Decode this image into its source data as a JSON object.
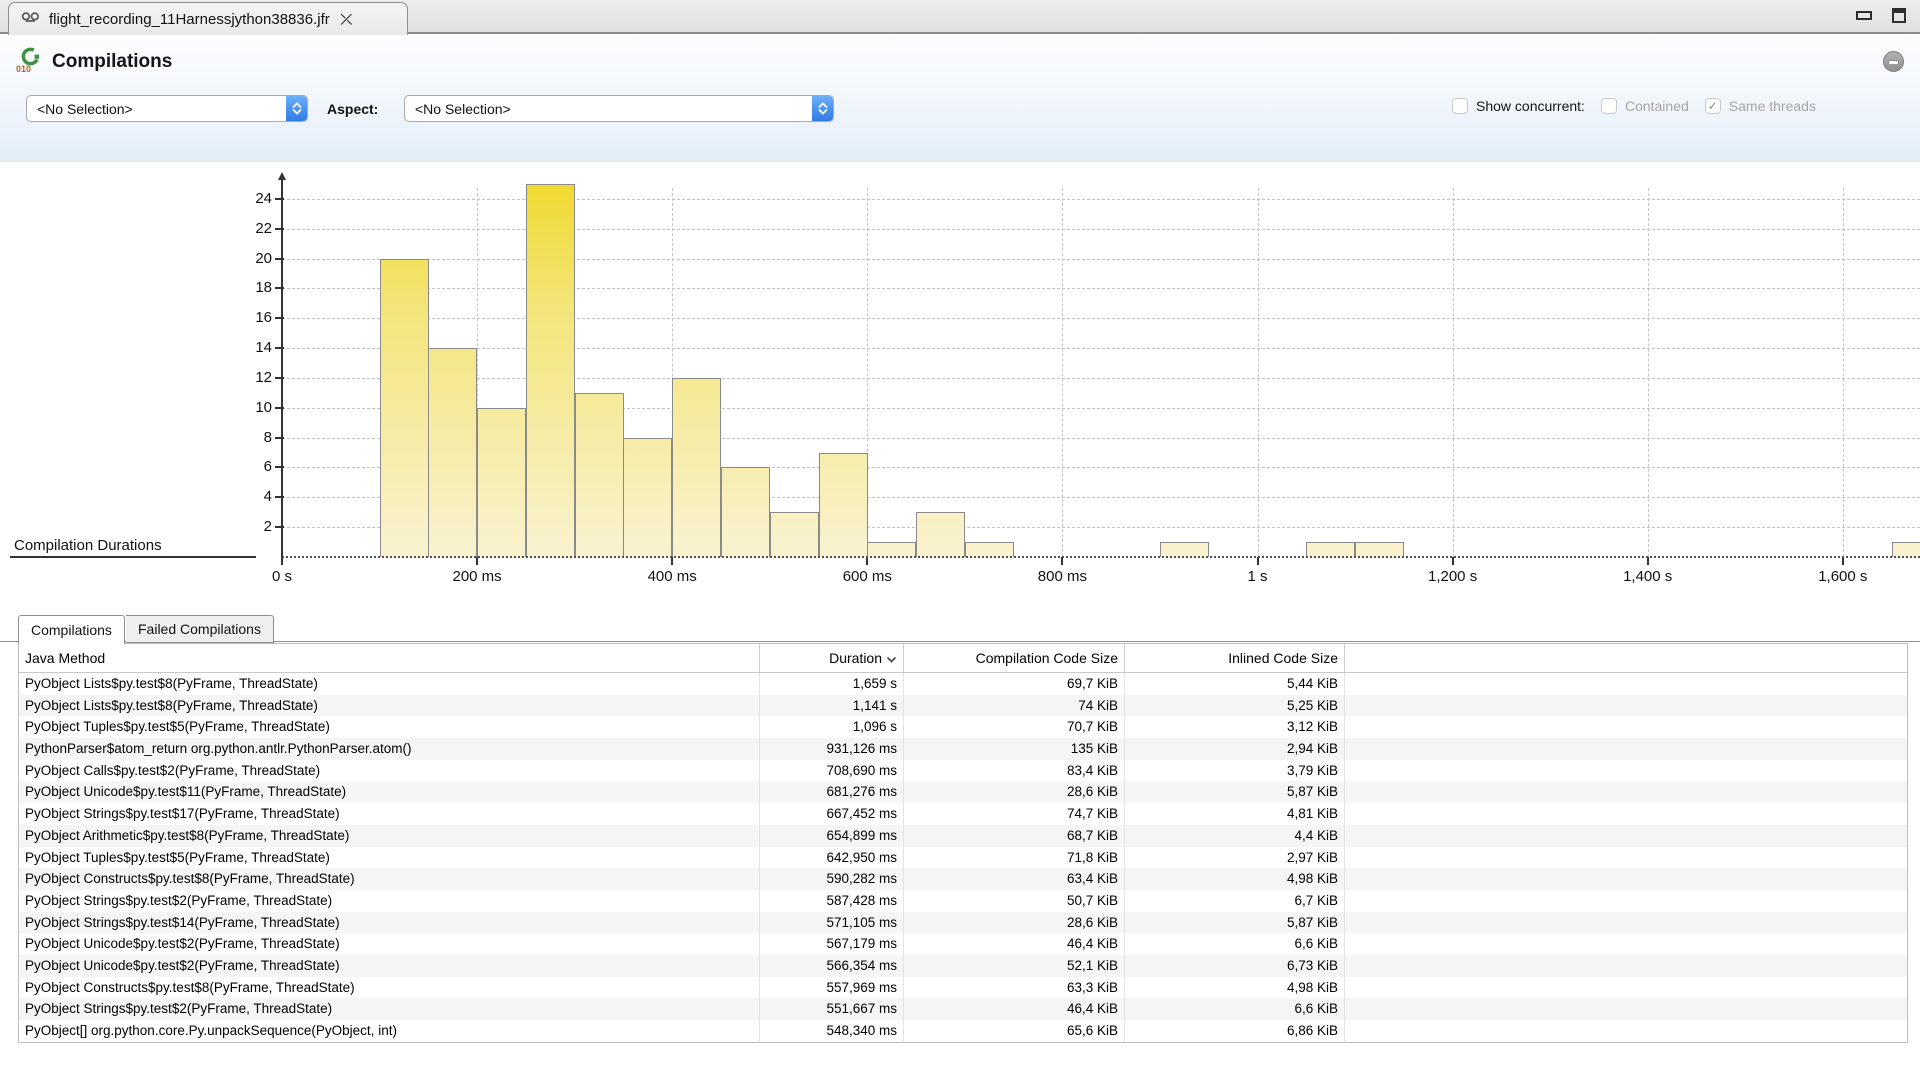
{
  "window": {
    "tab_title": "flight_recording_11Harnessjython38836.jfr"
  },
  "header": {
    "title": "Compilations",
    "selection_dropdown_value": "<No Selection>",
    "aspect_label": "Aspect:",
    "aspect_dropdown_value": "<No Selection>",
    "show_concurrent_label": "Show concurrent:",
    "contained_label": "Contained",
    "same_threads_label": "Same threads",
    "show_concurrent_checked": false,
    "contained_checked": false,
    "same_threads_checked": true
  },
  "colors": {
    "range_bar_orange": "#E85A0C",
    "bar_yellow_top": "#EFD92B",
    "bar_yellow_bottom": "#F9F2D0",
    "bar_border": "#8A8A8A"
  },
  "chart_data": {
    "type": "bar",
    "title": "Compilation Durations",
    "xlabel": "",
    "ylabel": "",
    "x_unit": "ms",
    "bin_width_ms": 50,
    "ylim": [
      0,
      25.6
    ],
    "grid": true,
    "y_ticks": [
      2,
      4,
      6,
      8,
      10,
      12,
      14,
      16,
      18,
      20,
      22,
      24
    ],
    "x_ticks": [
      {
        "ms": 0,
        "label": "0 s"
      },
      {
        "ms": 200,
        "label": "200 ms"
      },
      {
        "ms": 400,
        "label": "400 ms"
      },
      {
        "ms": 600,
        "label": "600 ms"
      },
      {
        "ms": 800,
        "label": "800 ms"
      },
      {
        "ms": 1000,
        "label": "1 s"
      },
      {
        "ms": 1200,
        "label": "1,200 s"
      },
      {
        "ms": 1400,
        "label": "1,400 s"
      },
      {
        "ms": 1600,
        "label": "1,600 s"
      }
    ],
    "bars": [
      {
        "start_ms": 100,
        "count": 20
      },
      {
        "start_ms": 150,
        "count": 14
      },
      {
        "start_ms": 200,
        "count": 10
      },
      {
        "start_ms": 250,
        "count": 25
      },
      {
        "start_ms": 300,
        "count": 11
      },
      {
        "start_ms": 350,
        "count": 8
      },
      {
        "start_ms": 400,
        "count": 12
      },
      {
        "start_ms": 450,
        "count": 6
      },
      {
        "start_ms": 500,
        "count": 3
      },
      {
        "start_ms": 550,
        "count": 7
      },
      {
        "start_ms": 600,
        "count": 1
      },
      {
        "start_ms": 650,
        "count": 3
      },
      {
        "start_ms": 700,
        "count": 1
      },
      {
        "start_ms": 900,
        "count": 1
      },
      {
        "start_ms": 1050,
        "count": 1
      },
      {
        "start_ms": 1100,
        "count": 1
      },
      {
        "start_ms": 1650,
        "count": 1
      }
    ]
  },
  "tabs": [
    {
      "label": "Compilations",
      "active": true
    },
    {
      "label": "Failed Compilations",
      "active": false
    }
  ],
  "table": {
    "columns": [
      "Java Method",
      "Duration",
      "Compilation Code Size",
      "Inlined Code Size"
    ],
    "sort_column": "Duration",
    "sort_direction": "descending",
    "rows": [
      {
        "method": "PyObject Lists$py.test$8(PyFrame, ThreadState)",
        "duration": "1,659 s",
        "code_size": "69,7 KiB",
        "inlined": "5,44 KiB"
      },
      {
        "method": "PyObject Lists$py.test$8(PyFrame, ThreadState)",
        "duration": "1,141 s",
        "code_size": "74 KiB",
        "inlined": "5,25 KiB"
      },
      {
        "method": "PyObject Tuples$py.test$5(PyFrame, ThreadState)",
        "duration": "1,096 s",
        "code_size": "70,7 KiB",
        "inlined": "3,12 KiB"
      },
      {
        "method": "PythonParser$atom_return org.python.antlr.PythonParser.atom()",
        "duration": "931,126 ms",
        "code_size": "135 KiB",
        "inlined": "2,94 KiB"
      },
      {
        "method": "PyObject Calls$py.test$2(PyFrame, ThreadState)",
        "duration": "708,690 ms",
        "code_size": "83,4 KiB",
        "inlined": "3,79 KiB"
      },
      {
        "method": "PyObject Unicode$py.test$11(PyFrame, ThreadState)",
        "duration": "681,276 ms",
        "code_size": "28,6 KiB",
        "inlined": "5,87 KiB"
      },
      {
        "method": "PyObject Strings$py.test$17(PyFrame, ThreadState)",
        "duration": "667,452 ms",
        "code_size": "74,7 KiB",
        "inlined": "4,81 KiB"
      },
      {
        "method": "PyObject Arithmetic$py.test$8(PyFrame, ThreadState)",
        "duration": "654,899 ms",
        "code_size": "68,7 KiB",
        "inlined": "4,4 KiB"
      },
      {
        "method": "PyObject Tuples$py.test$5(PyFrame, ThreadState)",
        "duration": "642,950 ms",
        "code_size": "71,8 KiB",
        "inlined": "2,97 KiB"
      },
      {
        "method": "PyObject Constructs$py.test$8(PyFrame, ThreadState)",
        "duration": "590,282 ms",
        "code_size": "63,4 KiB",
        "inlined": "4,98 KiB"
      },
      {
        "method": "PyObject Strings$py.test$2(PyFrame, ThreadState)",
        "duration": "587,428 ms",
        "code_size": "50,7 KiB",
        "inlined": "6,7 KiB"
      },
      {
        "method": "PyObject Strings$py.test$14(PyFrame, ThreadState)",
        "duration": "571,105 ms",
        "code_size": "28,6 KiB",
        "inlined": "5,87 KiB"
      },
      {
        "method": "PyObject Unicode$py.test$2(PyFrame, ThreadState)",
        "duration": "567,179 ms",
        "code_size": "46,4 KiB",
        "inlined": "6,6 KiB"
      },
      {
        "method": "PyObject Unicode$py.test$2(PyFrame, ThreadState)",
        "duration": "566,354 ms",
        "code_size": "52,1 KiB",
        "inlined": "6,73 KiB"
      },
      {
        "method": "PyObject Constructs$py.test$8(PyFrame, ThreadState)",
        "duration": "557,969 ms",
        "code_size": "63,3 KiB",
        "inlined": "4,98 KiB"
      },
      {
        "method": "PyObject Strings$py.test$2(PyFrame, ThreadState)",
        "duration": "551,667 ms",
        "code_size": "46,4 KiB",
        "inlined": "6,6 KiB"
      },
      {
        "method": "PyObject[] org.python.core.Py.unpackSequence(PyObject, int)",
        "duration": "548,340 ms",
        "code_size": "65,6 KiB",
        "inlined": "6,86 KiB"
      }
    ]
  }
}
